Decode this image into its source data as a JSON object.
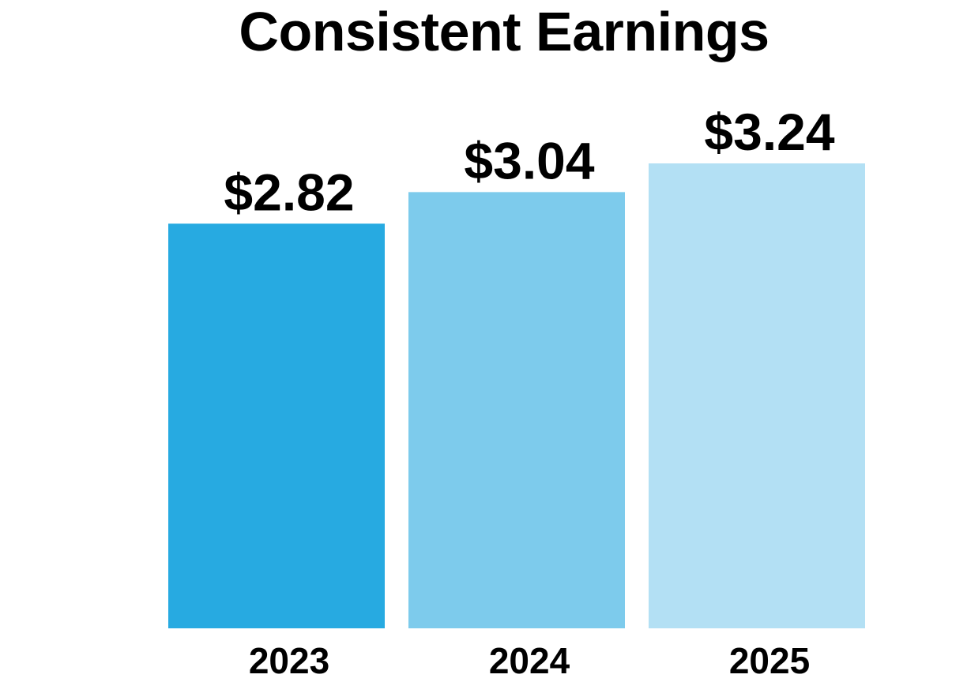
{
  "chart_data": {
    "type": "bar",
    "title": "Consistent Earnings",
    "categories": [
      "2023",
      "2024",
      "2025"
    ],
    "values": [
      2.82,
      3.04,
      3.24
    ],
    "value_labels": [
      "$2.82",
      "$3.04",
      "$3.24"
    ],
    "bar_colors": [
      "#27aae1",
      "#7dcbec",
      "#b3e0f4"
    ],
    "xlabel": "",
    "ylabel": "",
    "ylim": [
      0,
      3.24
    ],
    "grid": false,
    "legend": "none"
  }
}
